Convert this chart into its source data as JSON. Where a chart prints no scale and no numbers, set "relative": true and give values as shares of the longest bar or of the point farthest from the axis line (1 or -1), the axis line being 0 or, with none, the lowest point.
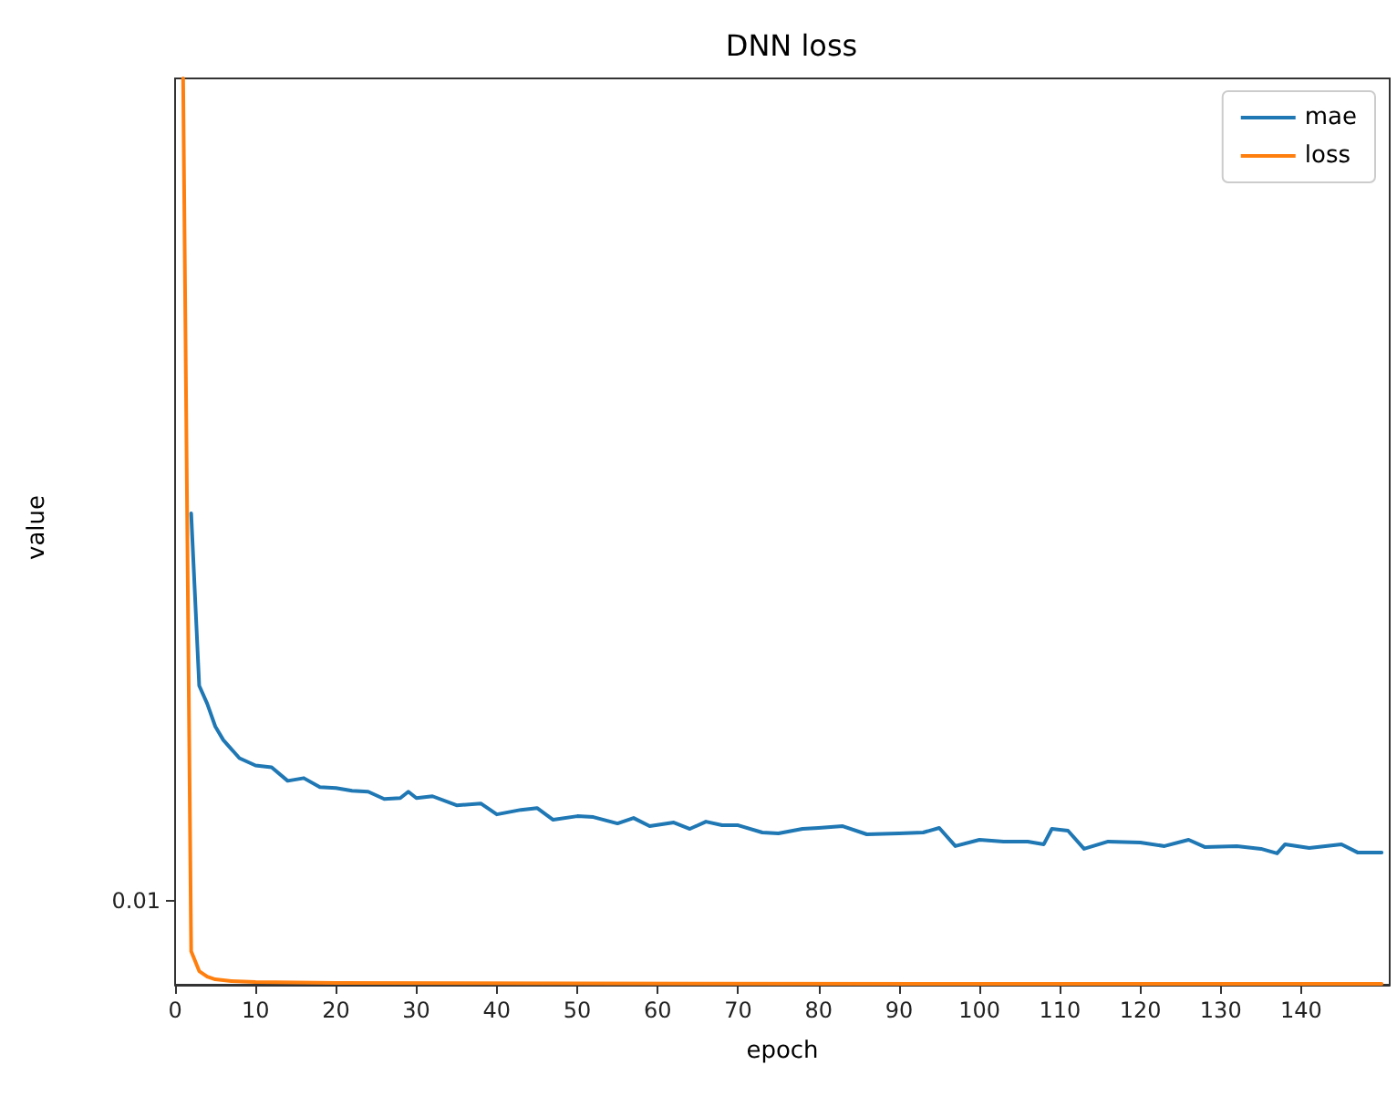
{
  "chart_data": {
    "type": "line",
    "title": "DNN loss",
    "xlabel": "epoch",
    "ylabel": "value",
    "relative": true,
    "legend": "top right",
    "grid": false,
    "marker": "none",
    "line_style": "solid",
    "xlim": [
      0,
      151
    ],
    "xticks": [
      0,
      10,
      20,
      30,
      40,
      50,
      60,
      70,
      80,
      90,
      100,
      110,
      120,
      130,
      140
    ],
    "annotations": [
      "0.01"
    ],
    "series": [
      {
        "name": "mae",
        "color": "#1f77b4",
        "x": [
          2,
          3,
          4,
          5,
          6,
          7,
          8,
          10,
          12,
          14,
          16,
          18,
          20,
          22,
          24,
          26,
          28,
          29,
          30,
          32,
          35,
          38,
          40,
          43,
          45,
          47,
          50,
          52,
          55,
          57,
          59,
          62,
          64,
          66,
          68,
          70,
          73,
          75,
          78,
          80,
          83,
          86,
          90,
          93,
          95,
          97,
          100,
          103,
          106,
          108,
          109,
          111,
          113,
          116,
          120,
          123,
          126,
          128,
          132,
          135,
          137,
          138,
          141,
          145,
          147,
          150
        ],
        "values": [
          0.52,
          0.33,
          0.31,
          0.285,
          0.27,
          0.26,
          0.25,
          0.242,
          0.24,
          0.225,
          0.228,
          0.218,
          0.217,
          0.214,
          0.213,
          0.205,
          0.206,
          0.213,
          0.206,
          0.208,
          0.198,
          0.2,
          0.188,
          0.193,
          0.195,
          0.182,
          0.186,
          0.185,
          0.178,
          0.184,
          0.175,
          0.179,
          0.172,
          0.18,
          0.176,
          0.176,
          0.168,
          0.167,
          0.172,
          0.173,
          0.175,
          0.166,
          0.167,
          0.168,
          0.173,
          0.153,
          0.16,
          0.158,
          0.158,
          0.155,
          0.172,
          0.17,
          0.15,
          0.158,
          0.157,
          0.153,
          0.16,
          0.152,
          0.153,
          0.15,
          0.145,
          0.155,
          0.151,
          0.155,
          0.146,
          0.146
        ]
      },
      {
        "name": "loss",
        "color": "#ff7f0e",
        "x": [
          1,
          2,
          3,
          4,
          5,
          7,
          10,
          20,
          50,
          100,
          150
        ],
        "values": [
          1,
          0.037,
          0.015,
          0.009,
          0.006,
          0.004,
          0.003,
          0.002,
          0.0015,
          0.001,
          0.001
        ]
      }
    ]
  }
}
